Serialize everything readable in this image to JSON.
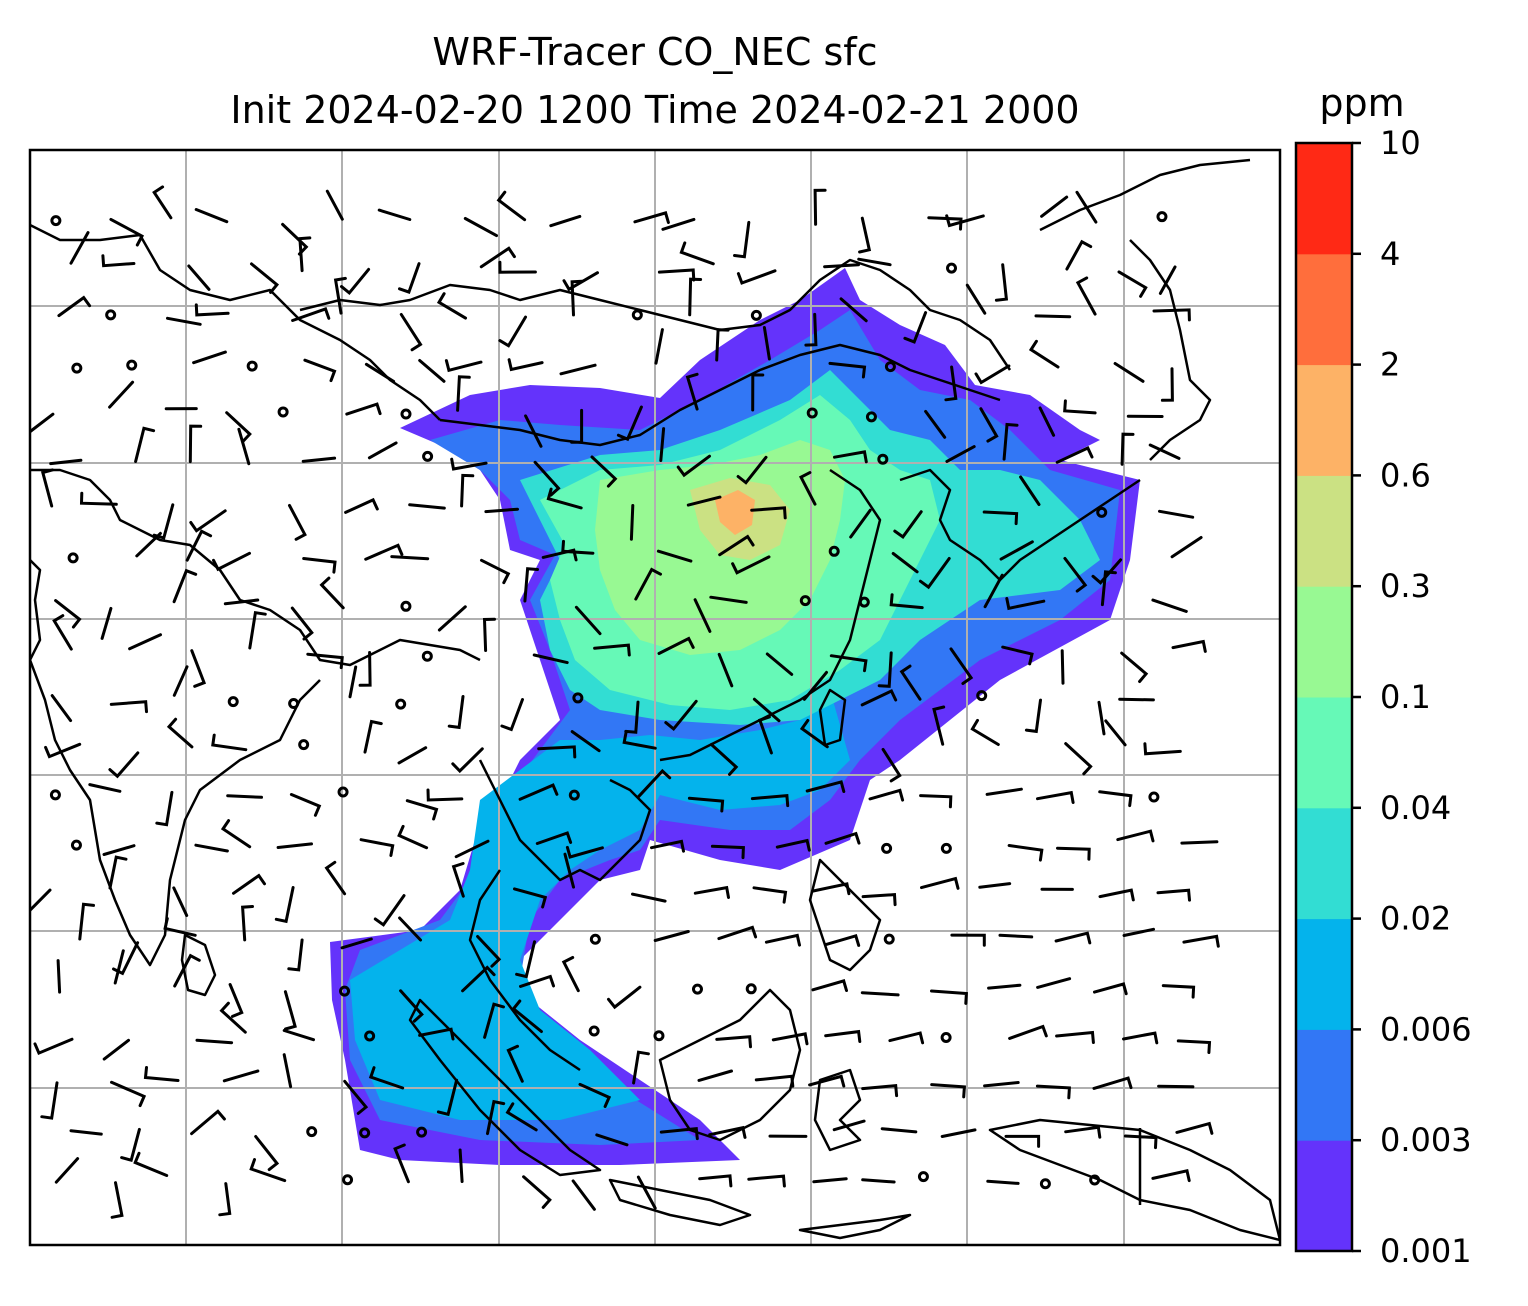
{
  "title": {
    "line1": "WRF-Tracer CO_NEC sfc",
    "line2": "Init 2024-02-20 1200 Time 2024-02-21 2000"
  },
  "colorbar": {
    "unit": "ppm",
    "levels": [
      "0.001",
      "0.003",
      "0.006",
      "0.02",
      "0.04",
      "0.1",
      "0.3",
      "0.6",
      "2",
      "4",
      "10"
    ],
    "colors": [
      "#6433fb",
      "#3277f5",
      "#04b3ec",
      "#32ddd3",
      "#66f9b7",
      "#98f993",
      "#cbe183",
      "#fdb266",
      "#ff6e3c",
      "#ff2915"
    ]
  },
  "map": {
    "field_regions": [
      {
        "name": "china-plume",
        "level_index": 4
      },
      {
        "name": "north-china-core",
        "level_index": 5
      },
      {
        "name": "henan-hotspot",
        "level_index": 7
      },
      {
        "name": "east-sea-band",
        "level_index": 2
      },
      {
        "name": "indochina-band",
        "level_index": 2
      },
      {
        "name": "sumatra-java-band",
        "level_index": 2
      },
      {
        "name": "northern-fringe",
        "level_index": 0
      }
    ],
    "gridlines": true,
    "wind_barbs": true
  }
}
